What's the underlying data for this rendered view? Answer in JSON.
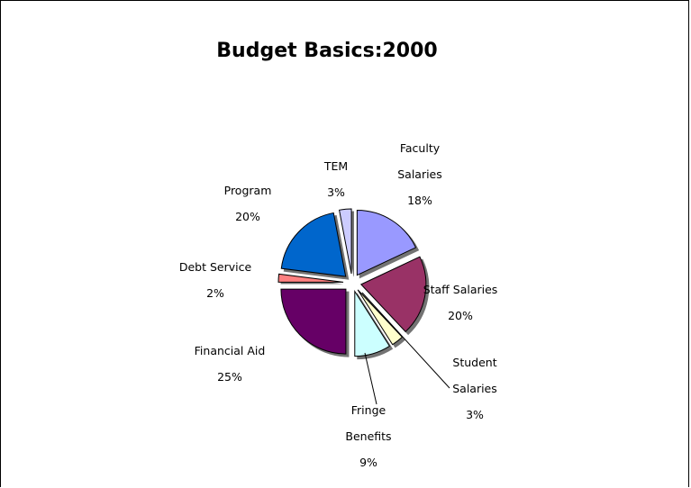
{
  "chart_data": {
    "type": "pie",
    "title": "Budget Basics:2000",
    "slices": [
      {
        "label_lines": [
          "Faculty",
          "Salaries",
          "18%"
        ],
        "value": 18,
        "color": "#9999ff"
      },
      {
        "label_lines": [
          "Staff Salaries",
          "20%"
        ],
        "value": 20,
        "color": "#993366"
      },
      {
        "label_lines": [
          "Student",
          "Salaries",
          "3%"
        ],
        "value": 3,
        "color": "#ffffcc"
      },
      {
        "label_lines": [
          "Fringe",
          "Benefits",
          "9%"
        ],
        "value": 9,
        "color": "#ccffff"
      },
      {
        "label_lines": [
          "Financial Aid",
          "25%"
        ],
        "value": 25,
        "color": "#660066"
      },
      {
        "label_lines": [
          "Debt Service",
          "2%"
        ],
        "value": 2,
        "color": "#ff8080"
      },
      {
        "label_lines": [
          "Program",
          "20%"
        ],
        "value": 20,
        "color": "#0066cc"
      },
      {
        "label_lines": [
          "TEM",
          "3%"
        ],
        "value": 3,
        "color": "#ccccff"
      }
    ],
    "start_angle_deg": 0,
    "direction": "clockwise",
    "exploded": true,
    "legend": "none"
  }
}
